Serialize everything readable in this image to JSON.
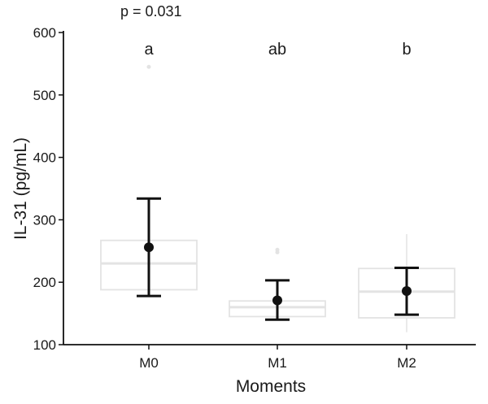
{
  "chart_data": {
    "type": "box",
    "annotation": "p = 0.031",
    "xlabel": "Moments",
    "ylabel": "IL-31 (pg/mL)",
    "ylim": [
      100,
      600
    ],
    "yticks": [
      100,
      200,
      300,
      400,
      500,
      600
    ],
    "categories": [
      "M0",
      "M1",
      "M2"
    ],
    "significance_letters": [
      "a",
      "ab",
      "b"
    ],
    "grid": false,
    "boxplot": [
      {
        "q1": 188,
        "median": 230,
        "q3": 267,
        "whisker_low": 188,
        "whisker_high": 267,
        "outliers": [
          545
        ]
      },
      {
        "q1": 145,
        "median": 160,
        "q3": 170,
        "whisker_low": 140,
        "whisker_high": 170,
        "outliers": [
          248,
          252
        ]
      },
      {
        "q1": 143,
        "median": 185,
        "q3": 222,
        "whisker_low": 120,
        "whisker_high": 277,
        "outliers": []
      }
    ],
    "mean": [
      256,
      171,
      186
    ],
    "error_low": [
      178,
      140,
      148
    ],
    "error_high": [
      334,
      203,
      223
    ],
    "colors": {
      "box": "#e3e3e3",
      "mean": "#111111",
      "axis": "#111111"
    }
  }
}
